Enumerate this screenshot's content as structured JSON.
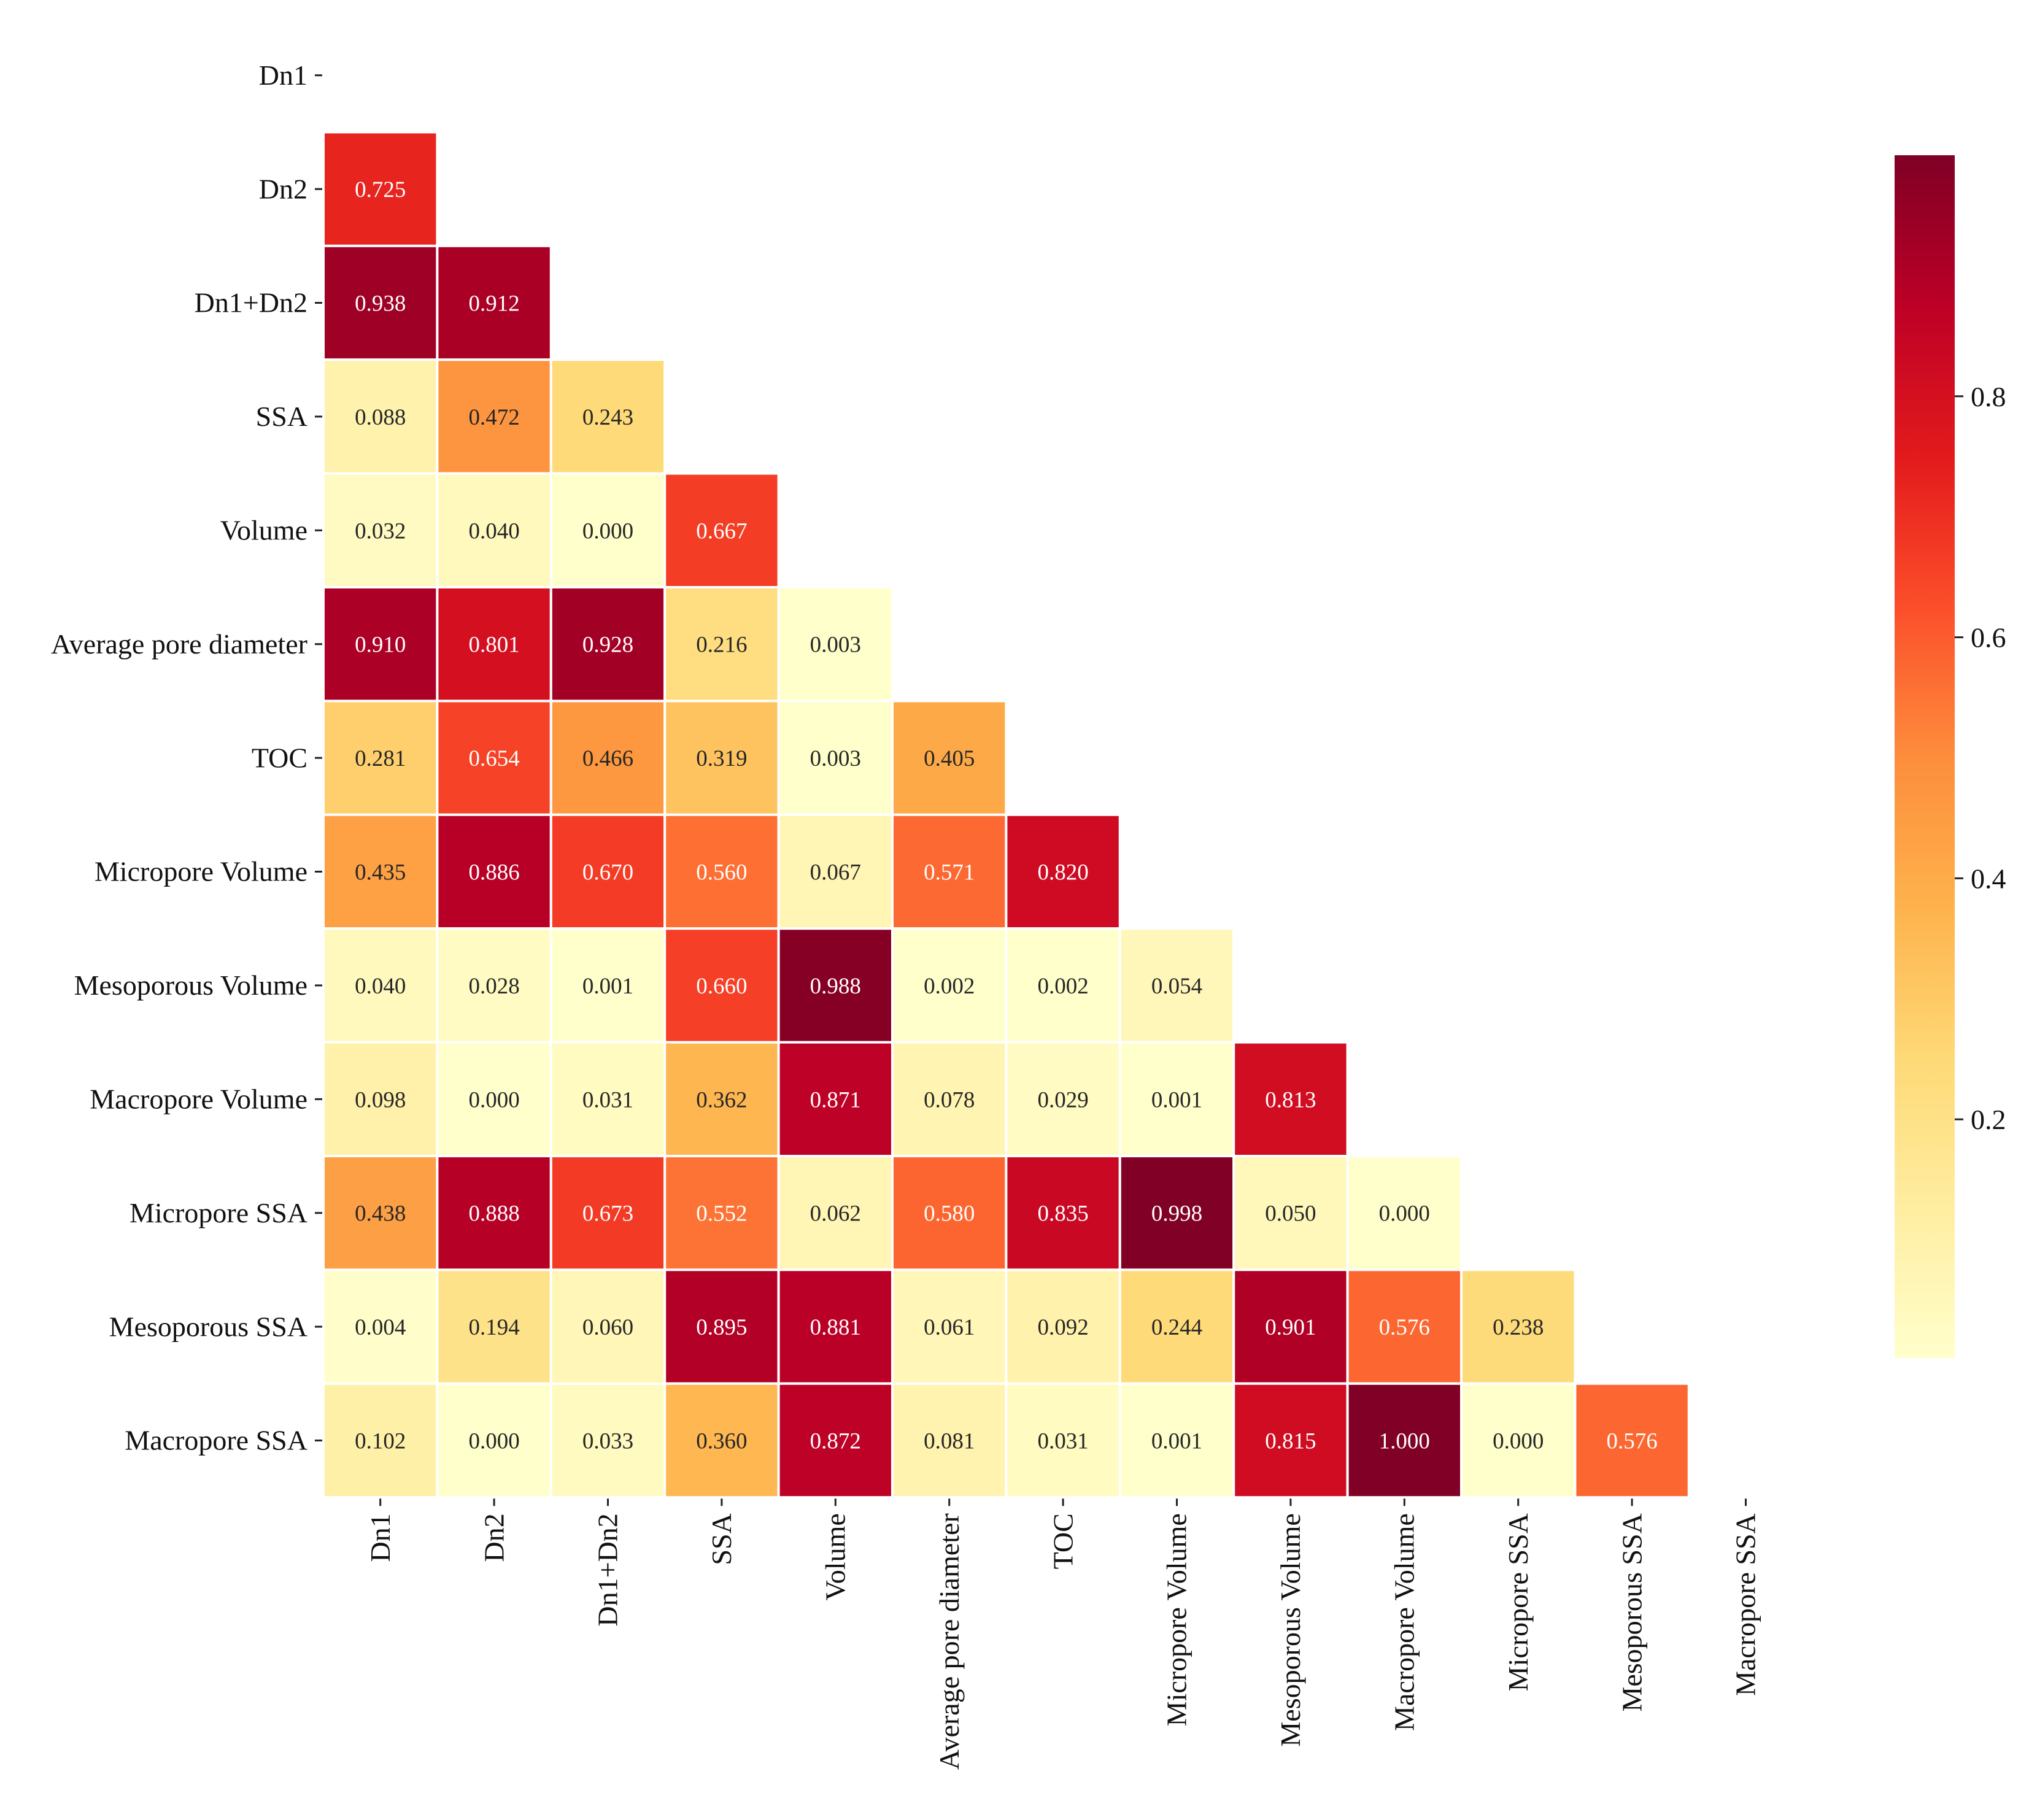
{
  "chart_data": {
    "type": "heatmap",
    "title": "",
    "xlabel": "",
    "ylabel": "",
    "mask": "upper-triangle-including-diagonal",
    "value_format": "3 decimals",
    "labels": [
      "Dn1",
      "Dn2",
      "Dn1+Dn2",
      "SSA",
      "Volume",
      "Average pore diameter ",
      "TOC",
      "Micropore Volume",
      "Mesoporous Volume",
      "Macropore Volume",
      "Micropore SSA",
      "Mesoporous SSA",
      "Macropore SSA"
    ],
    "x_labels": [
      "Dn1",
      "Dn2",
      "Dn1+Dn2",
      "SSA",
      "Volume",
      "Average pore diameter",
      "TOC",
      "Micropore Volume",
      "Mesoporous Volume",
      "Macropore Volume",
      "Micropore SSA",
      "Mesoporous SSA",
      "Macropore SSA"
    ],
    "rows": [
      [],
      [
        0.725
      ],
      [
        0.938,
        0.912
      ],
      [
        0.088,
        0.472,
        0.243
      ],
      [
        0.032,
        0.04,
        0.0,
        0.667
      ],
      [
        0.91,
        0.801,
        0.928,
        0.216,
        0.003
      ],
      [
        0.281,
        0.654,
        0.466,
        0.319,
        0.003,
        0.405
      ],
      [
        0.435,
        0.886,
        0.67,
        0.56,
        0.067,
        0.571,
        0.82
      ],
      [
        0.04,
        0.028,
        0.001,
        0.66,
        0.988,
        0.002,
        0.002,
        0.054
      ],
      [
        0.098,
        0.0,
        0.031,
        0.362,
        0.871,
        0.078,
        0.029,
        0.001,
        0.813
      ],
      [
        0.438,
        0.888,
        0.673,
        0.552,
        0.062,
        0.58,
        0.835,
        0.998,
        0.05,
        0.0
      ],
      [
        0.004,
        0.194,
        0.06,
        0.895,
        0.881,
        0.061,
        0.092,
        0.244,
        0.901,
        0.576,
        0.238
      ],
      [
        0.102,
        0.0,
        0.033,
        0.36,
        0.872,
        0.081,
        0.031,
        0.001,
        0.815,
        1.0,
        0.0,
        0.576
      ]
    ],
    "colorbar": {
      "colormap": "YlOrRd",
      "vmin": 0.0,
      "vmax": 1.0,
      "ticks": [
        0.2,
        0.4,
        0.6,
        0.8
      ],
      "tick_labels": [
        "0.2",
        "0.4",
        "0.6",
        "0.8"
      ]
    },
    "grid": false,
    "cell_border_color": "#ffffff",
    "text_color_light": "#ffffff",
    "text_color_dark": "#262626"
  }
}
